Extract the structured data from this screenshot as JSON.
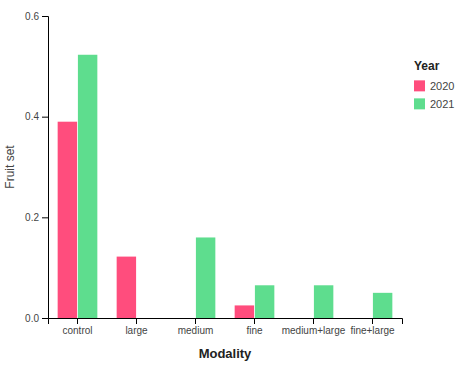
{
  "chart_data": {
    "type": "bar",
    "xlabel": "Modality",
    "ylabel": "Fruit set",
    "categories": [
      "control",
      "large",
      "medium",
      "fine",
      "medium+large",
      "fine+large"
    ],
    "series": [
      {
        "name": "2020",
        "color": "#FF4D7D",
        "values": [
          0.39,
          0.122,
          0.0,
          0.025,
          0.0,
          0.0
        ]
      },
      {
        "name": "2021",
        "color": "#5EDD8E",
        "values": [
          0.523,
          0.0,
          0.16,
          0.065,
          0.065,
          0.05
        ]
      }
    ],
    "ylim": [
      0.0,
      0.6
    ],
    "yticks": [
      {
        "value": 0.0,
        "label": "0.0"
      },
      0.2,
      0.4,
      0.6
    ],
    "grid": false,
    "legend": "right",
    "legend_title": "Year"
  }
}
